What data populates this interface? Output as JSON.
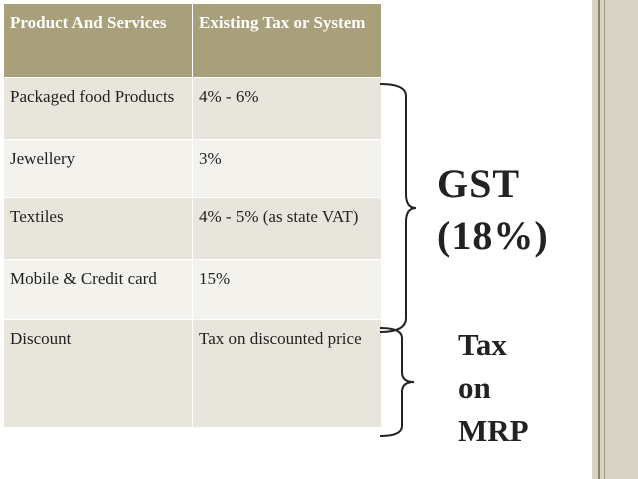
{
  "table": {
    "headers": [
      "Product And Services",
      "Existing Tax or System"
    ],
    "rows": [
      {
        "product": "Packaged food Products",
        "tax": "4% - 6%"
      },
      {
        "product": "Jewellery",
        "tax": "3%"
      },
      {
        "product": "Textiles",
        "tax": "4% - 5% (as state VAT)"
      },
      {
        "product": "Mobile & Credit card",
        "tax": "15%"
      },
      {
        "product": "Discount",
        "tax": "Tax on discounted price"
      }
    ]
  },
  "labels": {
    "gst_line1": "GST",
    "gst_line2": "(18%)",
    "mrp_line1": "Tax",
    "mrp_line2": "on",
    "mrp_line3": "MRP"
  },
  "colors": {
    "header_bg": "#a7a07a",
    "row_odd_bg": "#e8e6dc",
    "row_even_bg": "#f3f2ec",
    "border_accent": "#8b8463"
  }
}
